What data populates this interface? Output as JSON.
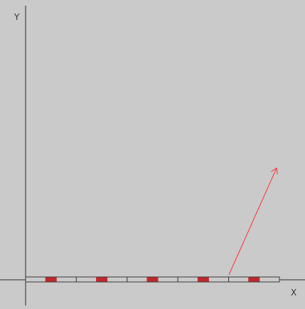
{
  "axes": {
    "x_label": "X",
    "y_label": "Y"
  },
  "colors": {
    "background": "#cacaca",
    "axis": "#2a2a2a",
    "segment_fill": "#cacaca",
    "segment_border": "#3a3a3a",
    "marker": "#c0282d",
    "vector": "#ff3030"
  },
  "segments": {
    "count": 5,
    "marker_count": 5
  }
}
